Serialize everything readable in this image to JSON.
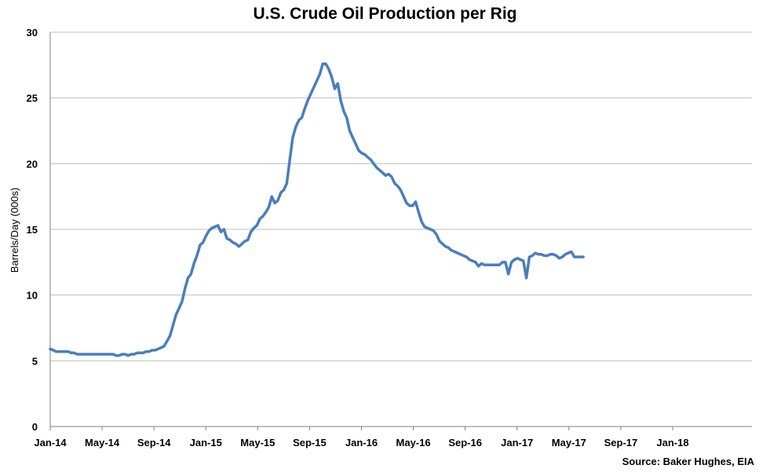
{
  "chart_data": {
    "type": "line",
    "title": "U.S. Crude Oil Production per Rig",
    "ylabel": "Barrels/Day (000s)",
    "xlabel": "",
    "source": "Source: Baker Hughes, EIA",
    "ylim": [
      0,
      30
    ],
    "yticks": [
      "0",
      "5",
      "10",
      "15",
      "20",
      "25",
      "30"
    ],
    "grid": "horizontal",
    "line_color": "#4a7ebb",
    "x_tick_labels": [
      "Jan-14",
      "May-14",
      "Sep-14",
      "Jan-15",
      "May-15",
      "Sep-15",
      "Jan-16",
      "May-16",
      "Sep-16",
      "Jan-17",
      "May-17",
      "Sep-17",
      "Jan-18"
    ],
    "x_start": "2014-01",
    "series": [
      {
        "values": [
          5.9,
          5.8,
          5.7,
          5.7,
          5.7,
          5.7,
          5.7,
          5.6,
          5.6,
          5.5,
          5.5,
          5.5,
          5.5,
          5.5,
          5.5,
          5.5,
          5.5,
          5.5,
          5.5,
          5.5,
          5.5,
          5.5,
          5.4,
          5.4,
          5.5,
          5.5,
          5.4,
          5.5,
          5.5,
          5.6,
          5.6,
          5.6,
          5.7,
          5.7,
          5.8,
          5.8,
          5.9,
          6.0,
          6.1,
          6.5,
          6.9,
          7.7,
          8.5,
          9.0,
          9.5,
          10.5,
          11.3,
          11.6,
          12.4,
          13.0,
          13.8,
          14.0,
          14.5,
          14.9,
          15.1,
          15.2,
          15.3,
          14.8,
          15.0,
          14.3,
          14.2,
          14.0,
          13.9,
          13.7,
          13.9,
          14.1,
          14.2,
          14.8,
          15.1,
          15.3,
          15.8,
          16.0,
          16.3,
          16.7,
          17.5,
          17.0,
          17.2,
          17.8,
          18.0,
          18.5,
          20.3,
          22.0,
          22.8,
          23.3,
          23.5,
          24.2,
          24.8,
          25.3,
          25.8,
          26.3,
          26.8,
          27.6,
          27.6,
          27.2,
          26.6,
          25.7,
          26.1,
          24.8,
          24.0,
          23.5,
          22.5,
          22.0,
          21.5,
          21.0,
          20.8,
          20.7,
          20.5,
          20.3,
          20.0,
          19.7,
          19.5,
          19.3,
          19.1,
          19.2,
          19.0,
          18.5,
          18.3,
          18.0,
          17.5,
          17.0,
          16.8,
          16.8,
          17.1,
          16.3,
          15.6,
          15.2,
          15.1,
          15.0,
          14.9,
          14.6,
          14.1,
          13.9,
          13.7,
          13.6,
          13.4,
          13.3,
          13.2,
          13.1,
          13.0,
          12.9,
          12.7,
          12.6,
          12.5,
          12.2,
          12.4,
          12.3,
          12.3,
          12.3,
          12.3,
          12.3,
          12.3,
          12.5,
          12.5,
          11.6,
          12.5,
          12.7,
          12.8,
          12.7,
          12.6,
          11.3,
          12.9,
          13.0,
          13.2,
          13.1,
          13.1,
          13.0,
          13.0,
          13.1,
          13.1,
          13.0,
          12.8,
          12.9,
          13.1,
          13.2,
          13.3,
          12.9,
          12.9,
          12.9,
          12.9
        ]
      }
    ]
  }
}
